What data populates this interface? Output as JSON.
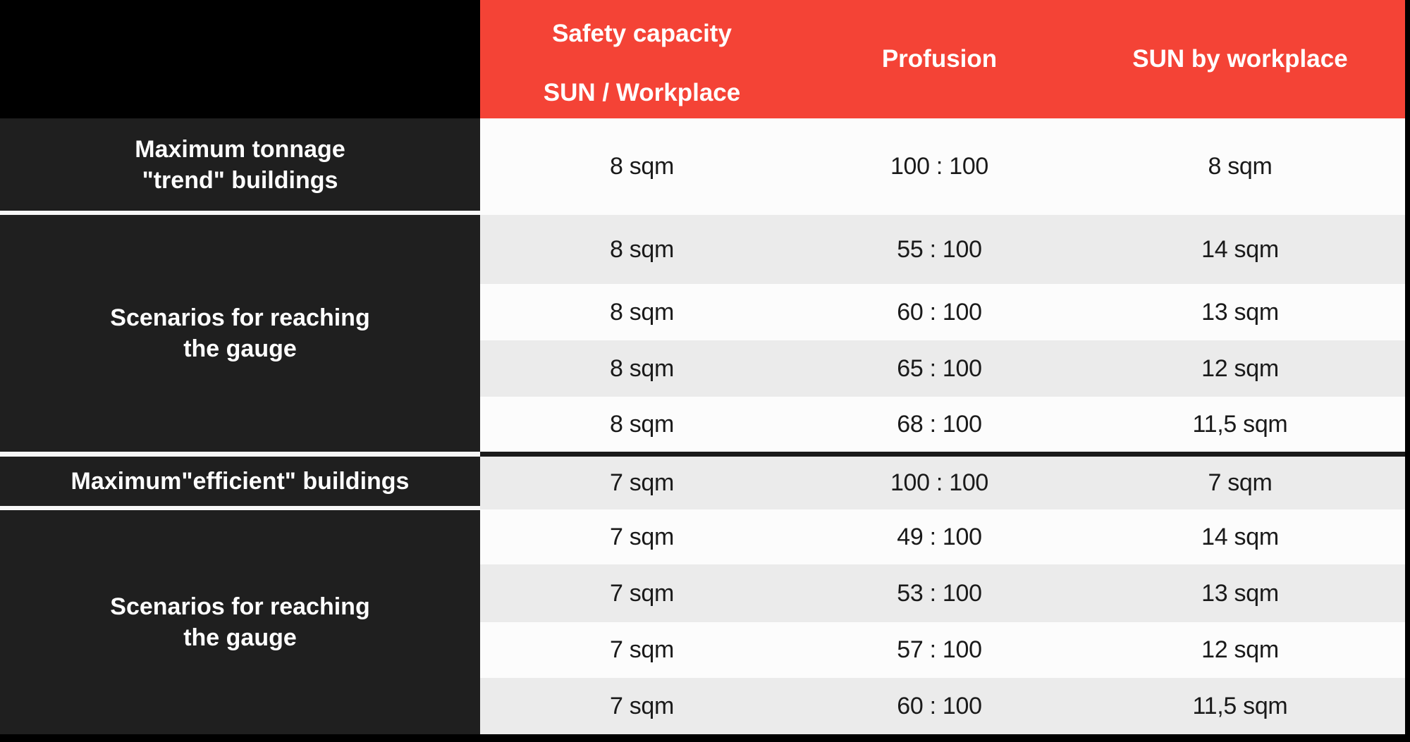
{
  "colors": {
    "header_bg": "#F44336",
    "header_text": "#FFFFFF",
    "label_cell_bg": "#1F1F1F",
    "label_text": "#FFFFFF",
    "stripe_white": "#FCFCFC",
    "stripe_gray": "#EBEBEB",
    "data_text": "#1A1A1A",
    "frame": "#000000"
  },
  "table": {
    "header": {
      "col1_line1": "Safety capacity",
      "col1_line2": "SUN / Workplace",
      "col2": "Profusion",
      "col3": "SUN by workplace"
    },
    "groups": [
      {
        "label": [
          "Maximum tonnage",
          "\"trend\" buildings"
        ],
        "rows": [
          [
            "8 sqm",
            "100 : 100",
            "8 sqm"
          ]
        ]
      },
      {
        "label": [
          "Scenarios for reaching",
          "the gauge"
        ],
        "rows": [
          [
            "8 sqm",
            "55 : 100",
            "14 sqm"
          ],
          [
            "8 sqm",
            "60 : 100",
            "13 sqm"
          ],
          [
            "8 sqm",
            "65 : 100",
            "12 sqm"
          ],
          [
            "8 sqm",
            "68 : 100",
            "11,5 sqm"
          ]
        ]
      },
      {
        "label": [
          "Maximum\"efficient\" buildings"
        ],
        "rows": [
          [
            "7 sqm",
            "100 : 100",
            "7 sqm"
          ]
        ]
      },
      {
        "label": [
          "Scenarios for reaching",
          "the gauge"
        ],
        "rows": [
          [
            "7 sqm",
            "49 : 100",
            "14 sqm"
          ],
          [
            "7 sqm",
            "53 : 100",
            "13 sqm"
          ],
          [
            "7 sqm",
            "57 : 100",
            "12 sqm"
          ],
          [
            "7 sqm",
            "60 : 100",
            "11,5 sqm"
          ]
        ]
      }
    ]
  }
}
